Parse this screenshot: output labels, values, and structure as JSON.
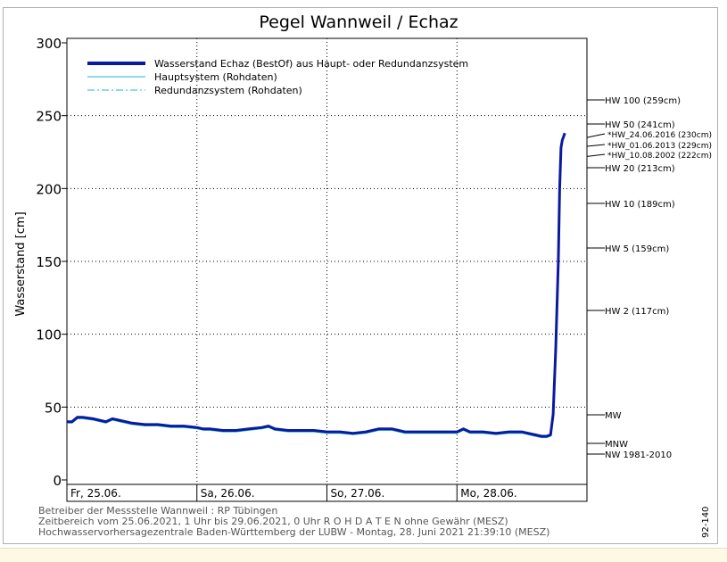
{
  "chart_data": {
    "type": "line",
    "title": "Pegel Wannweil / Echaz",
    "ylabel": "Wasserstand [cm]",
    "ylim": [
      0,
      300
    ],
    "yticks": [
      0,
      50,
      100,
      150,
      200,
      250,
      300
    ],
    "xlim": [
      0,
      4
    ],
    "day_labels": [
      "Fr, 25.06.",
      "Sa, 26.06.",
      "So, 27.06.",
      "Mo, 28.06."
    ],
    "grid": true,
    "legend_position": "top-left",
    "legend": [
      {
        "label": "Wasserstand Echaz  (BestOf)  aus Haupt- oder Redundanzsystem",
        "style": "solid-thick",
        "color": "#0a1aa0"
      },
      {
        "label": "Hauptsystem (Rohdaten)",
        "style": "solid-thin",
        "color": "#1ab8c8"
      },
      {
        "label": "Redundanzsystem (Rohdaten)",
        "style": "dash-dot",
        "color": "#1ab8c8"
      }
    ],
    "series": [
      {
        "name": "Wasserstand Echaz  (BestOf)  aus Haupt- oder Redundanzsystem",
        "x": [
          0,
          0.04,
          0.08,
          0.12,
          0.2,
          0.3,
          0.35,
          0.4,
          0.5,
          0.6,
          0.7,
          0.8,
          0.9,
          1.0,
          1.05,
          1.1,
          1.2,
          1.3,
          1.4,
          1.5,
          1.55,
          1.6,
          1.7,
          1.8,
          1.9,
          2.0,
          2.1,
          2.2,
          2.3,
          2.4,
          2.5,
          2.6,
          2.7,
          2.8,
          2.9,
          3.0,
          3.05,
          3.1,
          3.2,
          3.3,
          3.4,
          3.5,
          3.6,
          3.65,
          3.69,
          3.72,
          3.74,
          3.76,
          3.78,
          3.79,
          3.8,
          3.81,
          3.83
        ],
        "y": [
          40,
          40,
          43,
          43,
          42,
          40,
          42,
          41,
          39,
          38,
          38,
          37,
          37,
          36,
          35,
          35,
          34,
          34,
          35,
          36,
          37,
          35,
          34,
          34,
          34,
          33,
          33,
          32,
          33,
          35,
          35,
          33,
          33,
          33,
          33,
          33,
          35,
          33,
          33,
          32,
          33,
          33,
          31,
          30,
          30,
          31,
          45,
          90,
          150,
          200,
          228,
          233,
          238
        ]
      }
    ],
    "annotations_right": [
      {
        "label": "HW 100 (259cm)",
        "y": 259
      },
      {
        "label": "HW 50 (241cm)",
        "y": 241
      },
      {
        "label": "*HW_24.06.2016 (230cm)",
        "y": 235
      },
      {
        "label": "*HW_01.06.2013 (229cm)",
        "y": 229
      },
      {
        "label": "*HW_10.08.2002 (222cm)",
        "y": 222
      },
      {
        "label": "HW 20 (213cm)",
        "y": 213
      },
      {
        "label": "HW 10 (189cm)",
        "y": 189
      },
      {
        "label": "HW 5 (159cm)",
        "y": 159
      },
      {
        "label": "HW 2 (117cm)",
        "y": 117
      },
      {
        "label": "MW",
        "y": 45
      },
      {
        "label": "MNW",
        "y": 25
      },
      {
        "label": "NW 1981-2010",
        "y": 18
      }
    ],
    "footer": [
      "Betreiber der Messstelle Wannweil : RP Tübingen",
      "Zeitbereich vom 25.06.2021, 1 Uhr bis 29.06.2021, 0 Uhr    R O H D A T E N ohne Gewähr (MESZ)",
      "Hochwasservorhersagezentrale Baden-Württemberg der LUBW - Montag, 28. Juni 2021 21:39:10 (MESZ)"
    ],
    "side_code": "92-140"
  }
}
